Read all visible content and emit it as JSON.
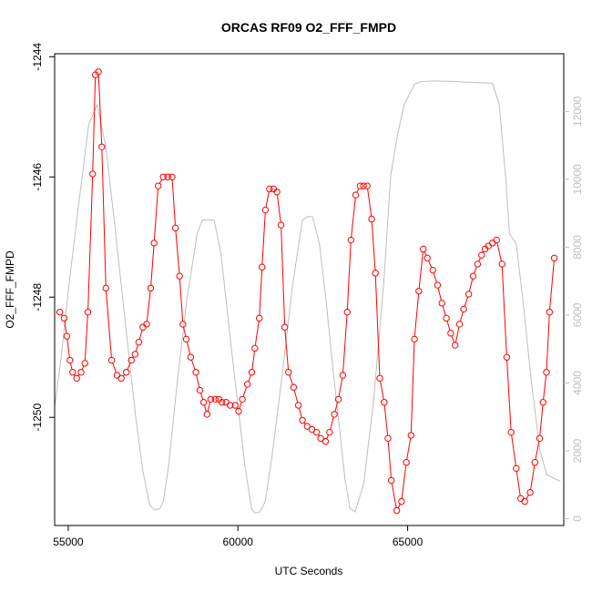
{
  "chart_data": {
    "type": "line",
    "title": "ORCAS RF09 O2_FFF_FMPD",
    "xlabel": "UTC Seconds",
    "ylabel": "O2_FFF_FMPD",
    "xlim": [
      54600,
      69600
    ],
    "ylim": [
      -1251.8,
      -1243.95
    ],
    "y2lim": [
      -200,
      13700
    ],
    "x_ticks": [
      55000,
      60000,
      65000
    ],
    "y_ticks": [
      -1250,
      -1248,
      -1246,
      -1244
    ],
    "y2_ticks": [
      0,
      2000,
      4000,
      6000,
      8000,
      10000,
      12000
    ],
    "grid": false,
    "colors": {
      "primary": "#ff0000",
      "secondary": "#bebebe",
      "axis": "#000000"
    },
    "series": [
      {
        "color": "#ff0000",
        "axis": "left",
        "style": "line+points",
        "x": [
          54750,
          54880,
          54960,
          55050,
          55130,
          55250,
          55380,
          55490,
          55580,
          55720,
          55800,
          55890,
          55990,
          56110,
          56280,
          56440,
          56560,
          56710,
          56860,
          56970,
          57080,
          57200,
          57310,
          57430,
          57530,
          57650,
          57800,
          57930,
          58060,
          58160,
          58280,
          58380,
          58480,
          58610,
          58760,
          58880,
          58990,
          59090,
          59200,
          59330,
          59440,
          59530,
          59650,
          59770,
          59920,
          60020,
          60130,
          60280,
          60410,
          60500,
          60630,
          60710,
          60810,
          60930,
          61050,
          61150,
          61270,
          61380,
          61490,
          61640,
          61780,
          61900,
          62040,
          62180,
          62320,
          62440,
          62580,
          62700,
          62840,
          62960,
          63090,
          63220,
          63330,
          63470,
          63600,
          63700,
          63810,
          63940,
          64050,
          64180,
          64310,
          64420,
          64520,
          64680,
          64820,
          64960,
          65100,
          65200,
          65330,
          65460,
          65580,
          65740,
          65880,
          66010,
          66140,
          66270,
          66400,
          66530,
          66650,
          66800,
          66930,
          67060,
          67180,
          67280,
          67380,
          67500,
          67620,
          67780,
          67920,
          68050,
          68200,
          68330,
          68450,
          68610,
          68750,
          68890,
          68990,
          69090,
          69180,
          69320
        ],
        "y": [
          -1248.25,
          -1248.35,
          -1248.65,
          -1249.05,
          -1249.25,
          -1249.35,
          -1249.25,
          -1249.1,
          -1248.25,
          -1245.95,
          -1244.3,
          -1244.25,
          -1245.5,
          -1247.85,
          -1249.05,
          -1249.3,
          -1249.35,
          -1249.25,
          -1249.05,
          -1248.95,
          -1248.75,
          -1248.5,
          -1248.45,
          -1247.85,
          -1247.1,
          -1246.15,
          -1246,
          -1246,
          -1246.0,
          -1246.85,
          -1247.65,
          -1248.45,
          -1248.7,
          -1249.0,
          -1249.25,
          -1249.55,
          -1249.75,
          -1249.95,
          -1249.7,
          -1249.7,
          -1249.7,
          -1249.75,
          -1249.75,
          -1249.8,
          -1249.8,
          -1249.9,
          -1249.7,
          -1249.45,
          -1249.25,
          -1248.85,
          -1248.35,
          -1247.5,
          -1246.55,
          -1246.2,
          -1246.2,
          -1246.25,
          -1246.8,
          -1248.5,
          -1249.25,
          -1249.5,
          -1249.8,
          -1250.05,
          -1250.15,
          -1250.2,
          -1250.25,
          -1250.35,
          -1250.4,
          -1250.25,
          -1249.95,
          -1249.7,
          -1249.3,
          -1248.25,
          -1247.05,
          -1246.3,
          -1246.15,
          -1246.15,
          -1246.15,
          -1246.7,
          -1247.6,
          -1249.35,
          -1249.75,
          -1250.35,
          -1251.05,
          -1251.55,
          -1251.4,
          -1250.75,
          -1250.3,
          -1248.7,
          -1247.9,
          -1247.2,
          -1247.35,
          -1247.55,
          -1247.8,
          -1248.1,
          -1248.35,
          -1248.6,
          -1248.8,
          -1248.45,
          -1248.2,
          -1247.95,
          -1247.65,
          -1247.45,
          -1247.3,
          -1247.2,
          -1247.15,
          -1247.1,
          -1247.05,
          -1247.45,
          -1249.0,
          -1250.25,
          -1250.85,
          -1251.35,
          -1251.4,
          -1251.25,
          -1250.75,
          -1250.35,
          -1249.75,
          -1249.25,
          -1248.25,
          -1247.35
        ]
      },
      {
        "color": "#bebebe",
        "axis": "right",
        "style": "line",
        "x": [
          54600,
          54800,
          55000,
          55300,
          55600,
          55850,
          56100,
          56400,
          56700,
          57000,
          57200,
          57400,
          57550,
          57700,
          57800,
          57950,
          58200,
          58500,
          58800,
          58950,
          59100,
          59300,
          59500,
          59700,
          59900,
          60200,
          60400,
          60500,
          60650,
          60800,
          61000,
          61300,
          61600,
          61900,
          62050,
          62200,
          62400,
          62600,
          62800,
          63000,
          63150,
          63300,
          63450,
          63700,
          64000,
          64300,
          64500,
          64700,
          64900,
          65200,
          65400,
          65800,
          66400,
          67000,
          67500,
          67700,
          67900,
          68000,
          68200,
          68400,
          68650,
          68900,
          69100,
          69500
        ],
        "y": [
          3300,
          4800,
          6700,
          9200,
          11600,
          12200,
          11000,
          8400,
          5600,
          2900,
          1400,
          400,
          250,
          300,
          500,
          1500,
          3900,
          6500,
          8400,
          8800,
          8800,
          8800,
          7800,
          6000,
          4200,
          1600,
          300,
          170,
          200,
          500,
          1800,
          4200,
          6800,
          8800,
          8900,
          8900,
          8100,
          6400,
          4400,
          2600,
          1200,
          300,
          200,
          1000,
          3500,
          7000,
          10100,
          11300,
          12200,
          12800,
          12880,
          12900,
          12880,
          12850,
          12830,
          12200,
          9900,
          8400,
          8100,
          6400,
          4000,
          2000,
          1300,
          1100
        ]
      }
    ]
  }
}
